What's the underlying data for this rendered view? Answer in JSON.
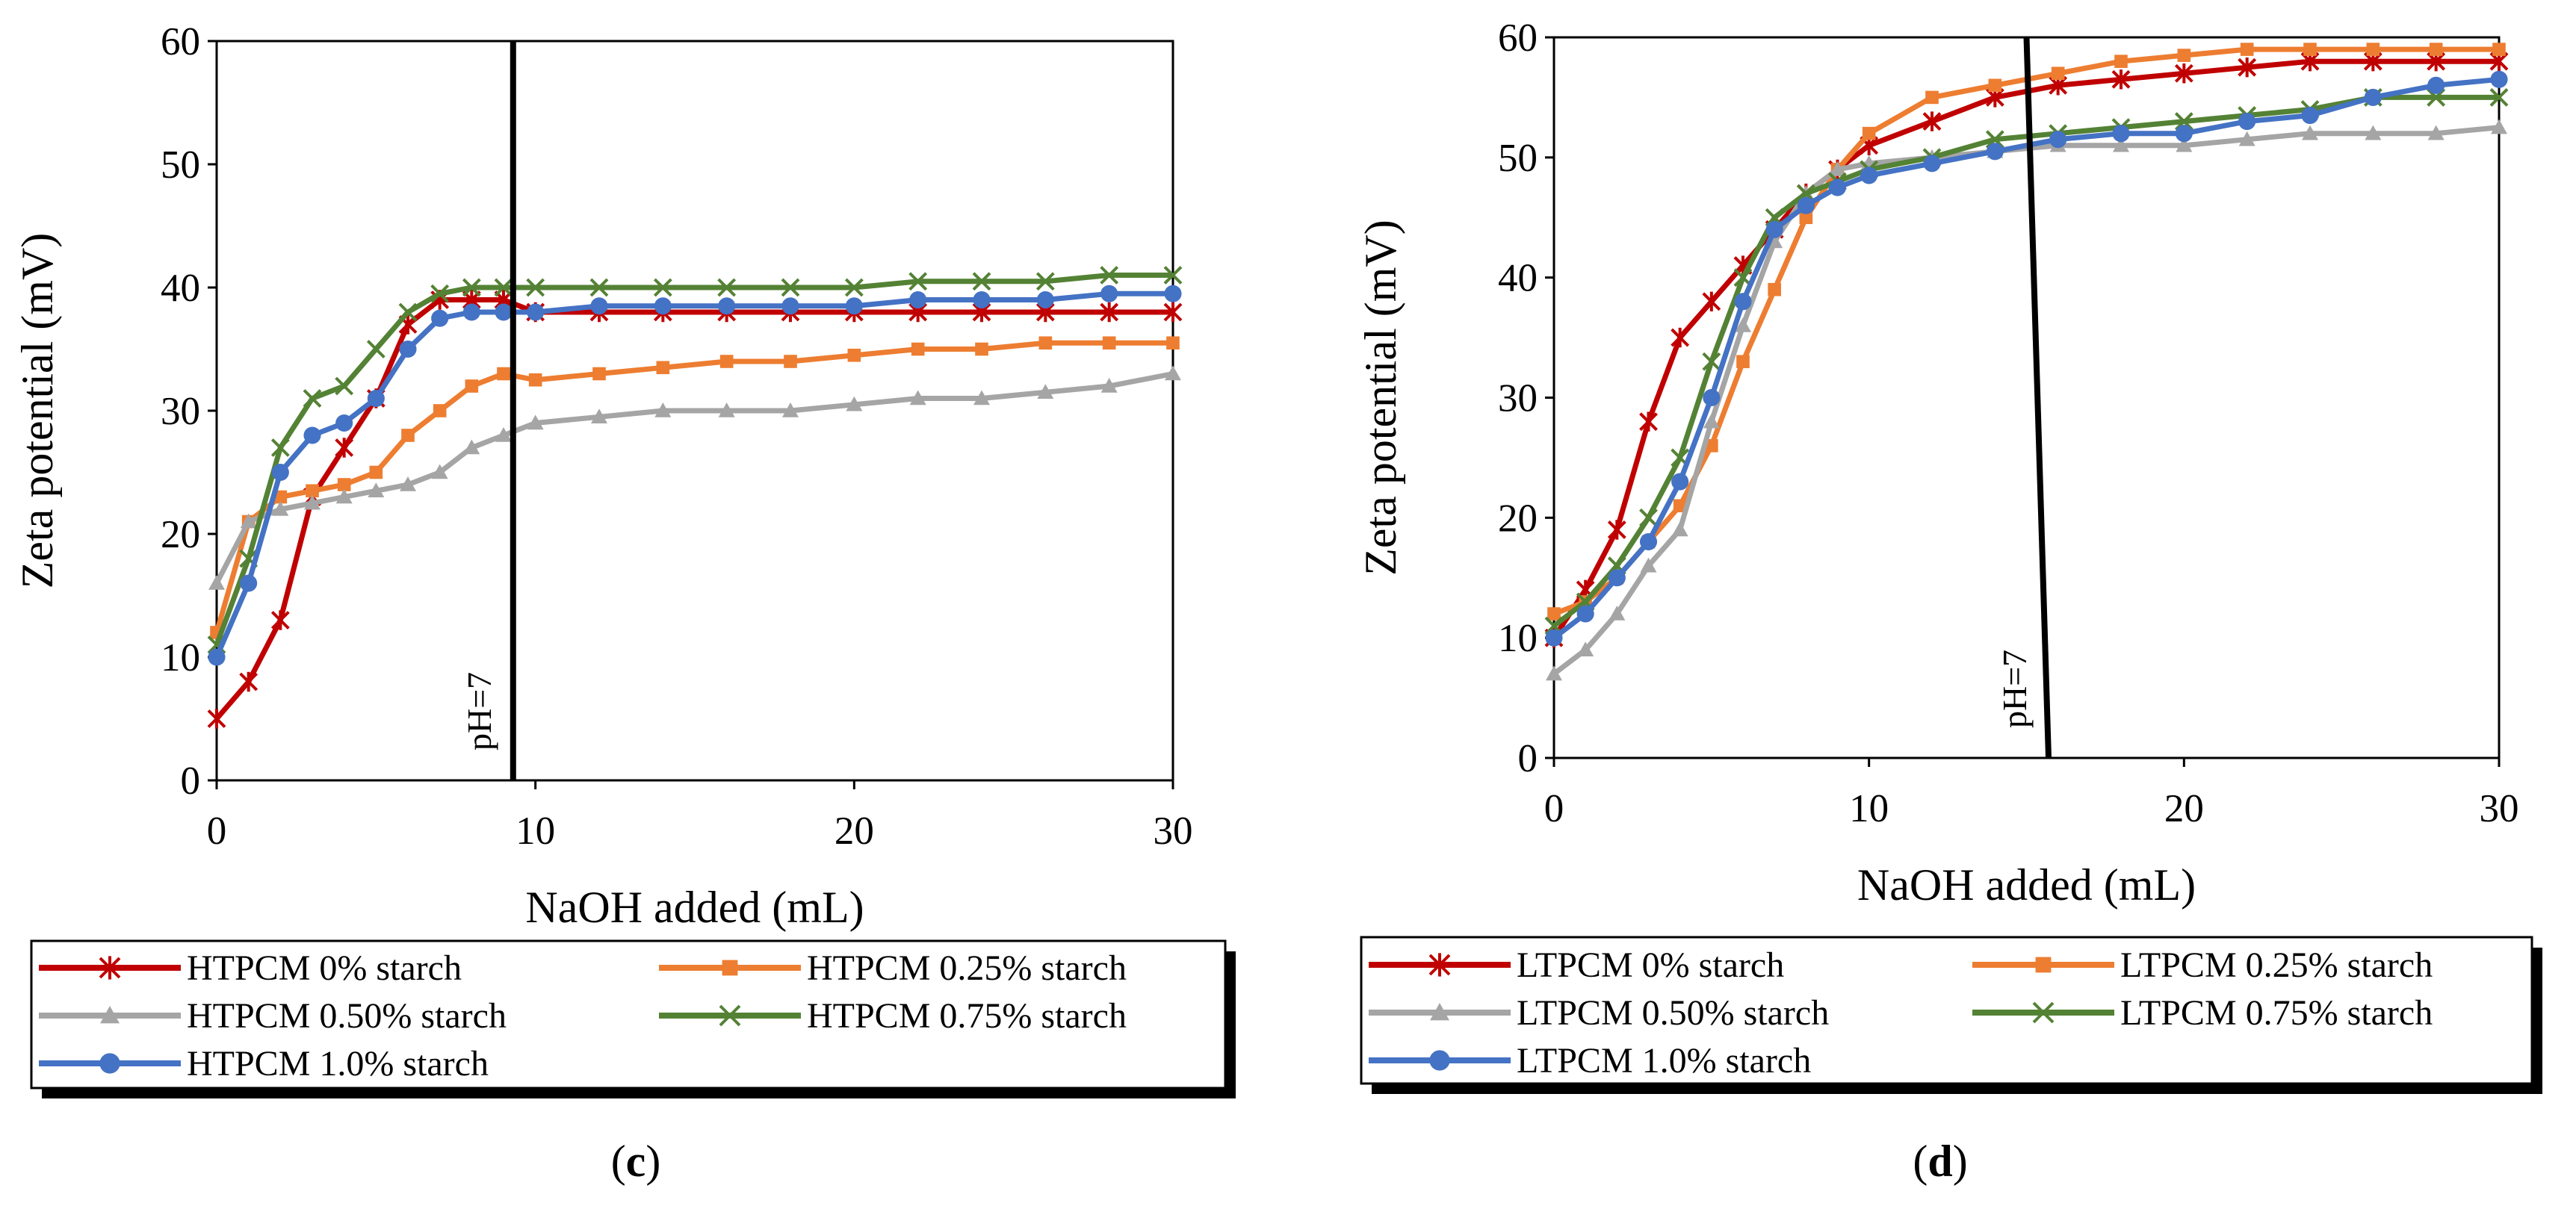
{
  "chart_data": [
    {
      "type": "line",
      "panel_label": "c",
      "xlabel": "NaOH added (mL)",
      "ylabel": "Zeta potential (mV)",
      "xlim": [
        0,
        30
      ],
      "ylim": [
        0,
        60
      ],
      "xticks": [
        "0",
        "10",
        "20",
        "30"
      ],
      "yticks": [
        "0",
        "10",
        "20",
        "30",
        "40",
        "50",
        "60"
      ],
      "grid": false,
      "legend_position": "bottom",
      "annotation": {
        "text": "pH=7",
        "line": [
          [
            9.3,
            0
          ],
          [
            9.3,
            60
          ]
        ]
      },
      "series": [
        {
          "name": "HTPCM 0% starch",
          "color": "#C00000",
          "marker": "asterisk",
          "points": [
            [
              0,
              5
            ],
            [
              1,
              8
            ],
            [
              2,
              13
            ],
            [
              3,
              23
            ],
            [
              4,
              27
            ],
            [
              5,
              31
            ],
            [
              6,
              37
            ],
            [
              7,
              39
            ],
            [
              8,
              39
            ],
            [
              9,
              39
            ],
            [
              10,
              38
            ],
            [
              12,
              38
            ],
            [
              14,
              38
            ],
            [
              16,
              38
            ],
            [
              18,
              38
            ],
            [
              20,
              38
            ],
            [
              22,
              38
            ],
            [
              24,
              38
            ],
            [
              26,
              38
            ],
            [
              28,
              38
            ],
            [
              30,
              38
            ]
          ]
        },
        {
          "name": "HTPCM 0.25% starch",
          "color": "#ED7D31",
          "marker": "square",
          "points": [
            [
              0,
              12
            ],
            [
              1,
              21
            ],
            [
              2,
              23
            ],
            [
              3,
              23.5
            ],
            [
              4,
              24
            ],
            [
              5,
              25
            ],
            [
              6,
              28
            ],
            [
              7,
              30
            ],
            [
              8,
              32
            ],
            [
              9,
              33
            ],
            [
              10,
              32.5
            ],
            [
              12,
              33
            ],
            [
              14,
              33.5
            ],
            [
              16,
              34
            ],
            [
              18,
              34
            ],
            [
              20,
              34.5
            ],
            [
              22,
              35
            ],
            [
              24,
              35
            ],
            [
              26,
              35.5
            ],
            [
              28,
              35.5
            ],
            [
              30,
              35.5
            ]
          ]
        },
        {
          "name": "HTPCM 0.50% starch",
          "color": "#A5A5A5",
          "marker": "triangle",
          "points": [
            [
              0,
              16
            ],
            [
              1,
              21
            ],
            [
              2,
              22
            ],
            [
              3,
              22.5
            ],
            [
              4,
              23
            ],
            [
              5,
              23.5
            ],
            [
              6,
              24
            ],
            [
              7,
              25
            ],
            [
              8,
              27
            ],
            [
              9,
              28
            ],
            [
              10,
              29
            ],
            [
              12,
              29.5
            ],
            [
              14,
              30
            ],
            [
              16,
              30
            ],
            [
              18,
              30
            ],
            [
              20,
              30.5
            ],
            [
              22,
              31
            ],
            [
              24,
              31
            ],
            [
              26,
              31.5
            ],
            [
              28,
              32
            ],
            [
              30,
              33
            ]
          ]
        },
        {
          "name": "HTPCM 0.75% starch",
          "color": "#548235",
          "marker": "x",
          "points": [
            [
              0,
              11
            ],
            [
              1,
              18
            ],
            [
              2,
              27
            ],
            [
              3,
              31
            ],
            [
              4,
              32
            ],
            [
              5,
              35
            ],
            [
              6,
              38
            ],
            [
              7,
              39.5
            ],
            [
              8,
              40
            ],
            [
              9,
              40
            ],
            [
              10,
              40
            ],
            [
              12,
              40
            ],
            [
              14,
              40
            ],
            [
              16,
              40
            ],
            [
              18,
              40
            ],
            [
              20,
              40
            ],
            [
              22,
              40.5
            ],
            [
              24,
              40.5
            ],
            [
              26,
              40.5
            ],
            [
              28,
              41
            ],
            [
              30,
              41
            ]
          ]
        },
        {
          "name": "HTPCM 1.0% starch",
          "color": "#4472C4",
          "marker": "circle",
          "points": [
            [
              0,
              10
            ],
            [
              1,
              16
            ],
            [
              2,
              25
            ],
            [
              3,
              28
            ],
            [
              4,
              29
            ],
            [
              5,
              31
            ],
            [
              6,
              35
            ],
            [
              7,
              37.5
            ],
            [
              8,
              38
            ],
            [
              9,
              38
            ],
            [
              10,
              38
            ],
            [
              12,
              38.5
            ],
            [
              14,
              38.5
            ],
            [
              16,
              38.5
            ],
            [
              18,
              38.5
            ],
            [
              20,
              38.5
            ],
            [
              22,
              39
            ],
            [
              24,
              39
            ],
            [
              26,
              39
            ],
            [
              28,
              39.5
            ],
            [
              30,
              39.5
            ]
          ]
        }
      ]
    },
    {
      "type": "line",
      "panel_label": "d",
      "xlabel": "NaOH added (mL)",
      "ylabel": "Zeta potential (mV)",
      "xlim": [
        0,
        30
      ],
      "ylim": [
        0,
        60
      ],
      "xticks": [
        "0",
        "10",
        "20",
        "30"
      ],
      "yticks": [
        "0",
        "10",
        "20",
        "30",
        "40",
        "50",
        "60"
      ],
      "grid": false,
      "legend_position": "bottom",
      "annotation": {
        "text": "pH=7",
        "line": [
          [
            15.7,
            0
          ],
          [
            15,
            60
          ]
        ]
      },
      "series": [
        {
          "name": "LTPCM 0% starch",
          "color": "#C00000",
          "marker": "asterisk",
          "points": [
            [
              0,
              10
            ],
            [
              1,
              14
            ],
            [
              2,
              19
            ],
            [
              3,
              28
            ],
            [
              4,
              35
            ],
            [
              5,
              38
            ],
            [
              6,
              41
            ],
            [
              7,
              44
            ],
            [
              8,
              47
            ],
            [
              9,
              49
            ],
            [
              10,
              51
            ],
            [
              12,
              53
            ],
            [
              14,
              55
            ],
            [
              16,
              56
            ],
            [
              18,
              56.5
            ],
            [
              20,
              57
            ],
            [
              22,
              57.5
            ],
            [
              24,
              58
            ],
            [
              26,
              58
            ],
            [
              28,
              58
            ],
            [
              30,
              58
            ]
          ]
        },
        {
          "name": "LTPCM 0.25% starch",
          "color": "#ED7D31",
          "marker": "square",
          "points": [
            [
              0,
              12
            ],
            [
              1,
              13
            ],
            [
              2,
              15
            ],
            [
              3,
              18
            ],
            [
              4,
              21
            ],
            [
              5,
              26
            ],
            [
              6,
              33
            ],
            [
              7,
              39
            ],
            [
              8,
              45
            ],
            [
              9,
              49
            ],
            [
              10,
              52
            ],
            [
              12,
              55
            ],
            [
              14,
              56
            ],
            [
              16,
              57
            ],
            [
              18,
              58
            ],
            [
              20,
              58.5
            ],
            [
              22,
              59
            ],
            [
              24,
              59
            ],
            [
              26,
              59
            ],
            [
              28,
              59
            ],
            [
              30,
              59
            ]
          ]
        },
        {
          "name": "LTPCM 0.50% starch",
          "color": "#A5A5A5",
          "marker": "triangle",
          "points": [
            [
              0,
              7
            ],
            [
              1,
              9
            ],
            [
              2,
              12
            ],
            [
              3,
              16
            ],
            [
              4,
              19
            ],
            [
              5,
              28
            ],
            [
              6,
              36
            ],
            [
              7,
              43
            ],
            [
              8,
              47
            ],
            [
              9,
              49
            ],
            [
              10,
              49.5
            ],
            [
              12,
              50
            ],
            [
              14,
              50.5
            ],
            [
              16,
              51
            ],
            [
              18,
              51
            ],
            [
              20,
              51
            ],
            [
              22,
              51.5
            ],
            [
              24,
              52
            ],
            [
              26,
              52
            ],
            [
              28,
              52
            ],
            [
              30,
              52.5
            ]
          ]
        },
        {
          "name": "LTPCM 0.75% starch",
          "color": "#548235",
          "marker": "x",
          "points": [
            [
              0,
              11
            ],
            [
              1,
              13
            ],
            [
              2,
              16
            ],
            [
              3,
              20
            ],
            [
              4,
              25
            ],
            [
              5,
              33
            ],
            [
              6,
              40
            ],
            [
              7,
              45
            ],
            [
              8,
              47
            ],
            [
              9,
              48
            ],
            [
              10,
              49
            ],
            [
              12,
              50
            ],
            [
              14,
              51.5
            ],
            [
              16,
              52
            ],
            [
              18,
              52.5
            ],
            [
              20,
              53
            ],
            [
              22,
              53.5
            ],
            [
              24,
              54
            ],
            [
              26,
              55
            ],
            [
              28,
              55
            ],
            [
              30,
              55
            ]
          ]
        },
        {
          "name": "LTPCM 1.0% starch",
          "color": "#4472C4",
          "marker": "circle",
          "points": [
            [
              0,
              10
            ],
            [
              1,
              12
            ],
            [
              2,
              15
            ],
            [
              3,
              18
            ],
            [
              4,
              23
            ],
            [
              5,
              30
            ],
            [
              6,
              38
            ],
            [
              7,
              44
            ],
            [
              8,
              46
            ],
            [
              9,
              47.5
            ],
            [
              10,
              48.5
            ],
            [
              12,
              49.5
            ],
            [
              14,
              50.5
            ],
            [
              16,
              51.5
            ],
            [
              18,
              52
            ],
            [
              20,
              52
            ],
            [
              22,
              53
            ],
            [
              24,
              53.5
            ],
            [
              26,
              55
            ],
            [
              28,
              56
            ],
            [
              30,
              56.5
            ]
          ]
        }
      ]
    }
  ]
}
